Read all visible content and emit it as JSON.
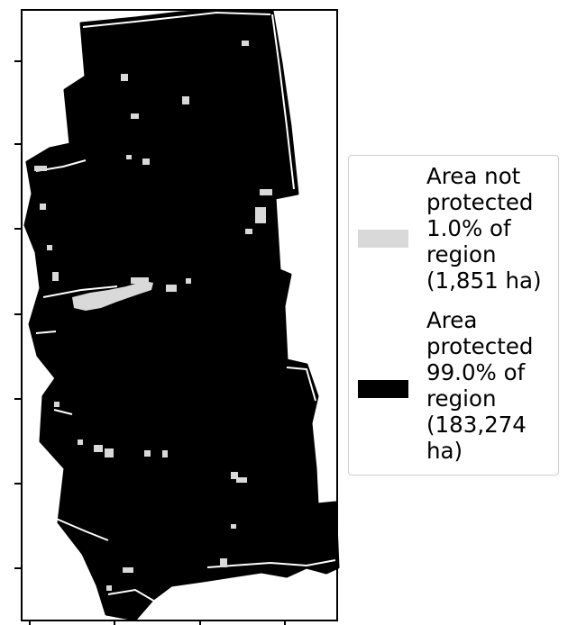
{
  "legend": {
    "items": [
      {
        "label": "Area not\nprotected\n1.0% of\nregion\n(1,851 ha)",
        "color": "#d9d9d9"
      },
      {
        "label": "Area\nprotected\n99.0% of\nregion\n(183,274\nha)",
        "color": "#000000"
      }
    ]
  }
}
